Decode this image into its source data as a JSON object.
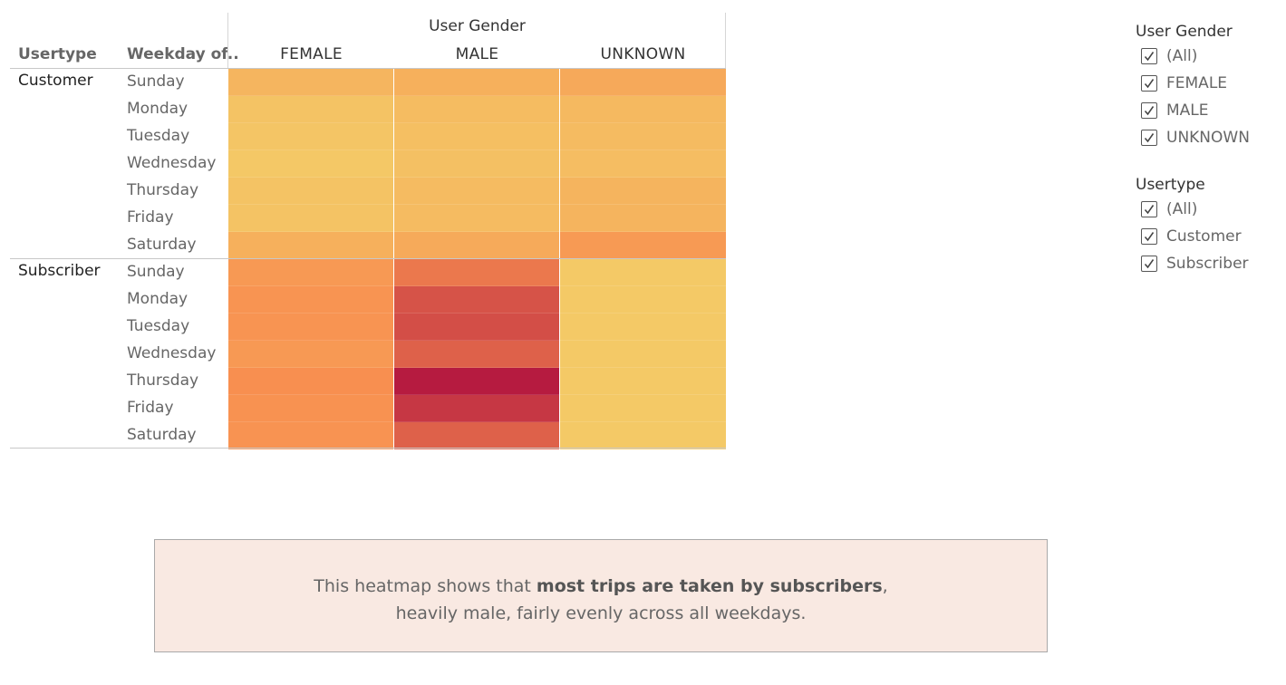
{
  "heatmap": {
    "column_group_title": "User Gender",
    "row_field_1": "Usertype",
    "row_field_2": "Weekday of..",
    "genders": [
      "FEMALE",
      "MALE",
      "UNKNOWN"
    ],
    "usertypes": [
      "Customer",
      "Subscriber"
    ],
    "weekdays": [
      "Sunday",
      "Monday",
      "Tuesday",
      "Wednesday",
      "Thursday",
      "Friday",
      "Saturday"
    ]
  },
  "chart_data": {
    "type": "heatmap",
    "title": "User Gender",
    "x_field": "User Gender",
    "y_fields": [
      "Usertype",
      "Weekday of.."
    ],
    "x_categories": [
      "FEMALE",
      "MALE",
      "UNKNOWN"
    ],
    "y_groups": [
      {
        "name": "Customer",
        "rows": [
          {
            "weekday": "Sunday",
            "values": [
              0.22,
              0.26,
              0.31
            ]
          },
          {
            "weekday": "Monday",
            "values": [
              0.12,
              0.17,
              0.19
            ]
          },
          {
            "weekday": "Tuesday",
            "values": [
              0.1,
              0.15,
              0.18
            ]
          },
          {
            "weekday": "Wednesday",
            "values": [
              0.08,
              0.14,
              0.16
            ]
          },
          {
            "weekday": "Thursday",
            "values": [
              0.12,
              0.18,
              0.23
            ]
          },
          {
            "weekday": "Friday",
            "values": [
              0.12,
              0.18,
              0.23
            ]
          },
          {
            "weekday": "Saturday",
            "values": [
              0.26,
              0.3,
              0.42
            ]
          }
        ]
      },
      {
        "name": "Subscriber",
        "rows": [
          {
            "weekday": "Sunday",
            "values": [
              0.43,
              0.6,
              0.07
            ]
          },
          {
            "weekday": "Monday",
            "values": [
              0.46,
              0.76,
              0.07
            ]
          },
          {
            "weekday": "Tuesday",
            "values": [
              0.46,
              0.78,
              0.07
            ]
          },
          {
            "weekday": "Wednesday",
            "values": [
              0.43,
              0.7,
              0.07
            ]
          },
          {
            "weekday": "Thursday",
            "values": [
              0.5,
              1.0,
              0.07
            ]
          },
          {
            "weekday": "Friday",
            "values": [
              0.48,
              0.88,
              0.07
            ]
          },
          {
            "weekday": "Saturday",
            "values": [
              0.47,
              0.7,
              0.07
            ]
          }
        ]
      }
    ],
    "value_scale": "relative trip count (0 = lowest, 1 = highest)",
    "color_low": "#f3d36a",
    "color_mid": "#f88f50",
    "color_high": "#b61b40"
  },
  "filters": {
    "gender": {
      "title": "User Gender",
      "items": [
        {
          "label": "(All)",
          "checked": true
        },
        {
          "label": "FEMALE",
          "checked": true
        },
        {
          "label": "MALE",
          "checked": true
        },
        {
          "label": "UNKNOWN",
          "checked": true
        }
      ]
    },
    "usertype": {
      "title": "Usertype",
      "items": [
        {
          "label": "(All)",
          "checked": true
        },
        {
          "label": "Customer",
          "checked": true
        },
        {
          "label": "Subscriber",
          "checked": true
        }
      ]
    }
  },
  "caption": {
    "line1_pre": "This heatmap shows that ",
    "line1_bold": "most trips are taken by subscribers",
    "line1_post": ",",
    "line2": "heavily male, fairly evenly across all weekdays."
  }
}
